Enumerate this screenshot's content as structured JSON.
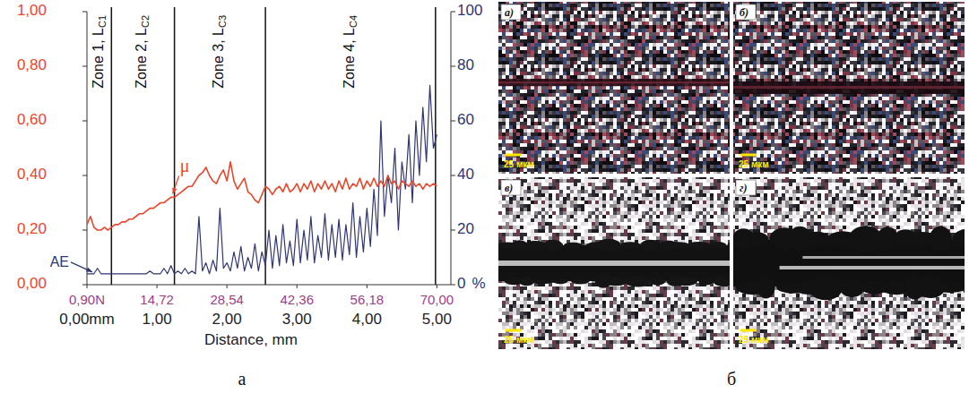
{
  "chart_data": {
    "type": "line",
    "x_label": "Distance, mm",
    "x": [
      0,
      0.05,
      0.1,
      0.15,
      0.2,
      0.25,
      0.3,
      0.35,
      0.4,
      0.45,
      0.5,
      0.55,
      0.6,
      0.65,
      0.7,
      0.75,
      0.8,
      0.85,
      0.9,
      0.95,
      1,
      1.05,
      1.1,
      1.15,
      1.2,
      1.25,
      1.3,
      1.35,
      1.4,
      1.45,
      1.5,
      1.55,
      1.6,
      1.65,
      1.7,
      1.75,
      1.8,
      1.85,
      1.9,
      1.95,
      2,
      2.05,
      2.1,
      2.15,
      2.2,
      2.25,
      2.3,
      2.35,
      2.4,
      2.45,
      2.5,
      2.55,
      2.6,
      2.65,
      2.7,
      2.75,
      2.8,
      2.85,
      2.9,
      2.95,
      3,
      3.05,
      3.1,
      3.15,
      3.2,
      3.25,
      3.3,
      3.35,
      3.4,
      3.45,
      3.5,
      3.55,
      3.6,
      3.65,
      3.7,
      3.75,
      3.8,
      3.85,
      3.9,
      3.95,
      4,
      4.05,
      4.1,
      4.15,
      4.2,
      4.25,
      4.3,
      4.35,
      4.4,
      4.45,
      4.5,
      4.55,
      4.6,
      4.65,
      4.7,
      4.75,
      4.8,
      4.85,
      4.9,
      4.95,
      5
    ],
    "xlim": [
      0,
      5.2
    ],
    "xticks": [
      {
        "value": 0,
        "label": "0,00mm"
      },
      {
        "value": 1,
        "label": "1,00"
      },
      {
        "value": 2,
        "label": "2,00"
      },
      {
        "value": 3,
        "label": "3,00"
      },
      {
        "value": 4,
        "label": "4,00"
      },
      {
        "value": 5,
        "label": "5,00"
      }
    ],
    "x2lim": [
      0.9,
      72.76
    ],
    "x2ticks": [
      {
        "value": 0.9,
        "label": "0,90N"
      },
      {
        "value": 14.72,
        "label": "14,72"
      },
      {
        "value": 28.54,
        "label": "28,54"
      },
      {
        "value": 42.36,
        "label": "42,36"
      },
      {
        "value": 56.18,
        "label": "56,18"
      },
      {
        "value": 70,
        "label": "70,00"
      }
    ],
    "ylim": [
      0,
      1
    ],
    "yticks": [
      {
        "value": 0,
        "label": "0,00"
      },
      {
        "value": 0.2,
        "label": "0,20"
      },
      {
        "value": 0.4,
        "label": "0,40"
      },
      {
        "value": 0.6,
        "label": "0,60"
      },
      {
        "value": 0.8,
        "label": "0,80"
      },
      {
        "value": 1,
        "label": "1,00"
      }
    ],
    "y2lim": [
      0,
      100
    ],
    "y2ticks": [
      0,
      20,
      40,
      60,
      80,
      100
    ],
    "y2_label": "%",
    "series": [
      {
        "name": "μ",
        "color": "#e8472a",
        "values": [
          0.22,
          0.25,
          0.21,
          0.2,
          0.2,
          0.21,
          0.2,
          0.21,
          0.22,
          0.22,
          0.23,
          0.23,
          0.24,
          0.24,
          0.25,
          0.26,
          0.26,
          0.27,
          0.28,
          0.28,
          0.29,
          0.3,
          0.3,
          0.31,
          0.32,
          0.32,
          0.33,
          0.34,
          0.35,
          0.36,
          0.36,
          0.38,
          0.4,
          0.41,
          0.43,
          0.4,
          0.38,
          0.37,
          0.4,
          0.42,
          0.38,
          0.45,
          0.38,
          0.35,
          0.37,
          0.39,
          0.34,
          0.33,
          0.31,
          0.3,
          0.33,
          0.36,
          0.35,
          0.33,
          0.35,
          0.36,
          0.34,
          0.37,
          0.34,
          0.35,
          0.37,
          0.34,
          0.37,
          0.35,
          0.38,
          0.34,
          0.37,
          0.35,
          0.38,
          0.35,
          0.37,
          0.34,
          0.38,
          0.35,
          0.39,
          0.35,
          0.37,
          0.36,
          0.39,
          0.35,
          0.38,
          0.36,
          0.39,
          0.36,
          0.38,
          0.36,
          0.4,
          0.37,
          0.38,
          0.35,
          0.38,
          0.37,
          0.36,
          0.38,
          0.36,
          0.37,
          0.35,
          0.37,
          0.36,
          0.37,
          0.36
        ]
      },
      {
        "name": "AE",
        "color": "#2f3672",
        "axis": "y2",
        "values": [
          4,
          4,
          4,
          6,
          4,
          4,
          4,
          4,
          4,
          4,
          4,
          4,
          4,
          4,
          4,
          4,
          4,
          4,
          5,
          4,
          4,
          4,
          6,
          4,
          7,
          4,
          5,
          4,
          6,
          4,
          5,
          4,
          25,
          5,
          8,
          4,
          9,
          5,
          28,
          6,
          8,
          5,
          12,
          6,
          14,
          5,
          10,
          6,
          15,
          5,
          12,
          7,
          20,
          6,
          18,
          7,
          22,
          8,
          16,
          7,
          24,
          8,
          20,
          9,
          25,
          8,
          18,
          10,
          26,
          9,
          22,
          10,
          24,
          9,
          22,
          11,
          30,
          10,
          25,
          12,
          28,
          14,
          35,
          18,
          60,
          25,
          40,
          30,
          50,
          20,
          45,
          35,
          55,
          30,
          60,
          40,
          65,
          45,
          73,
          50,
          55
        ]
      }
    ],
    "zones": [
      {
        "label": "Zone  1, L",
        "subscript": "C1",
        "end": 0.35
      },
      {
        "label": "Zone  2, L",
        "subscript": "C2",
        "end": 1.25
      },
      {
        "label": "Zone  3, L",
        "subscript": "C3",
        "end": 2.55
      },
      {
        "label": "Zone  4, L",
        "subscript": "C4",
        "end": 4.98
      }
    ]
  },
  "micrographs": {
    "panels": [
      {
        "label": "а)",
        "scale_bar": "25 мкм"
      },
      {
        "label": "б)",
        "scale_bar": "25 мкм"
      },
      {
        "label": "в)",
        "scale_bar": "25 мкм"
      },
      {
        "label": "г)",
        "scale_bar": "25 мкм"
      }
    ]
  },
  "panel_captions": [
    "а",
    "б"
  ]
}
